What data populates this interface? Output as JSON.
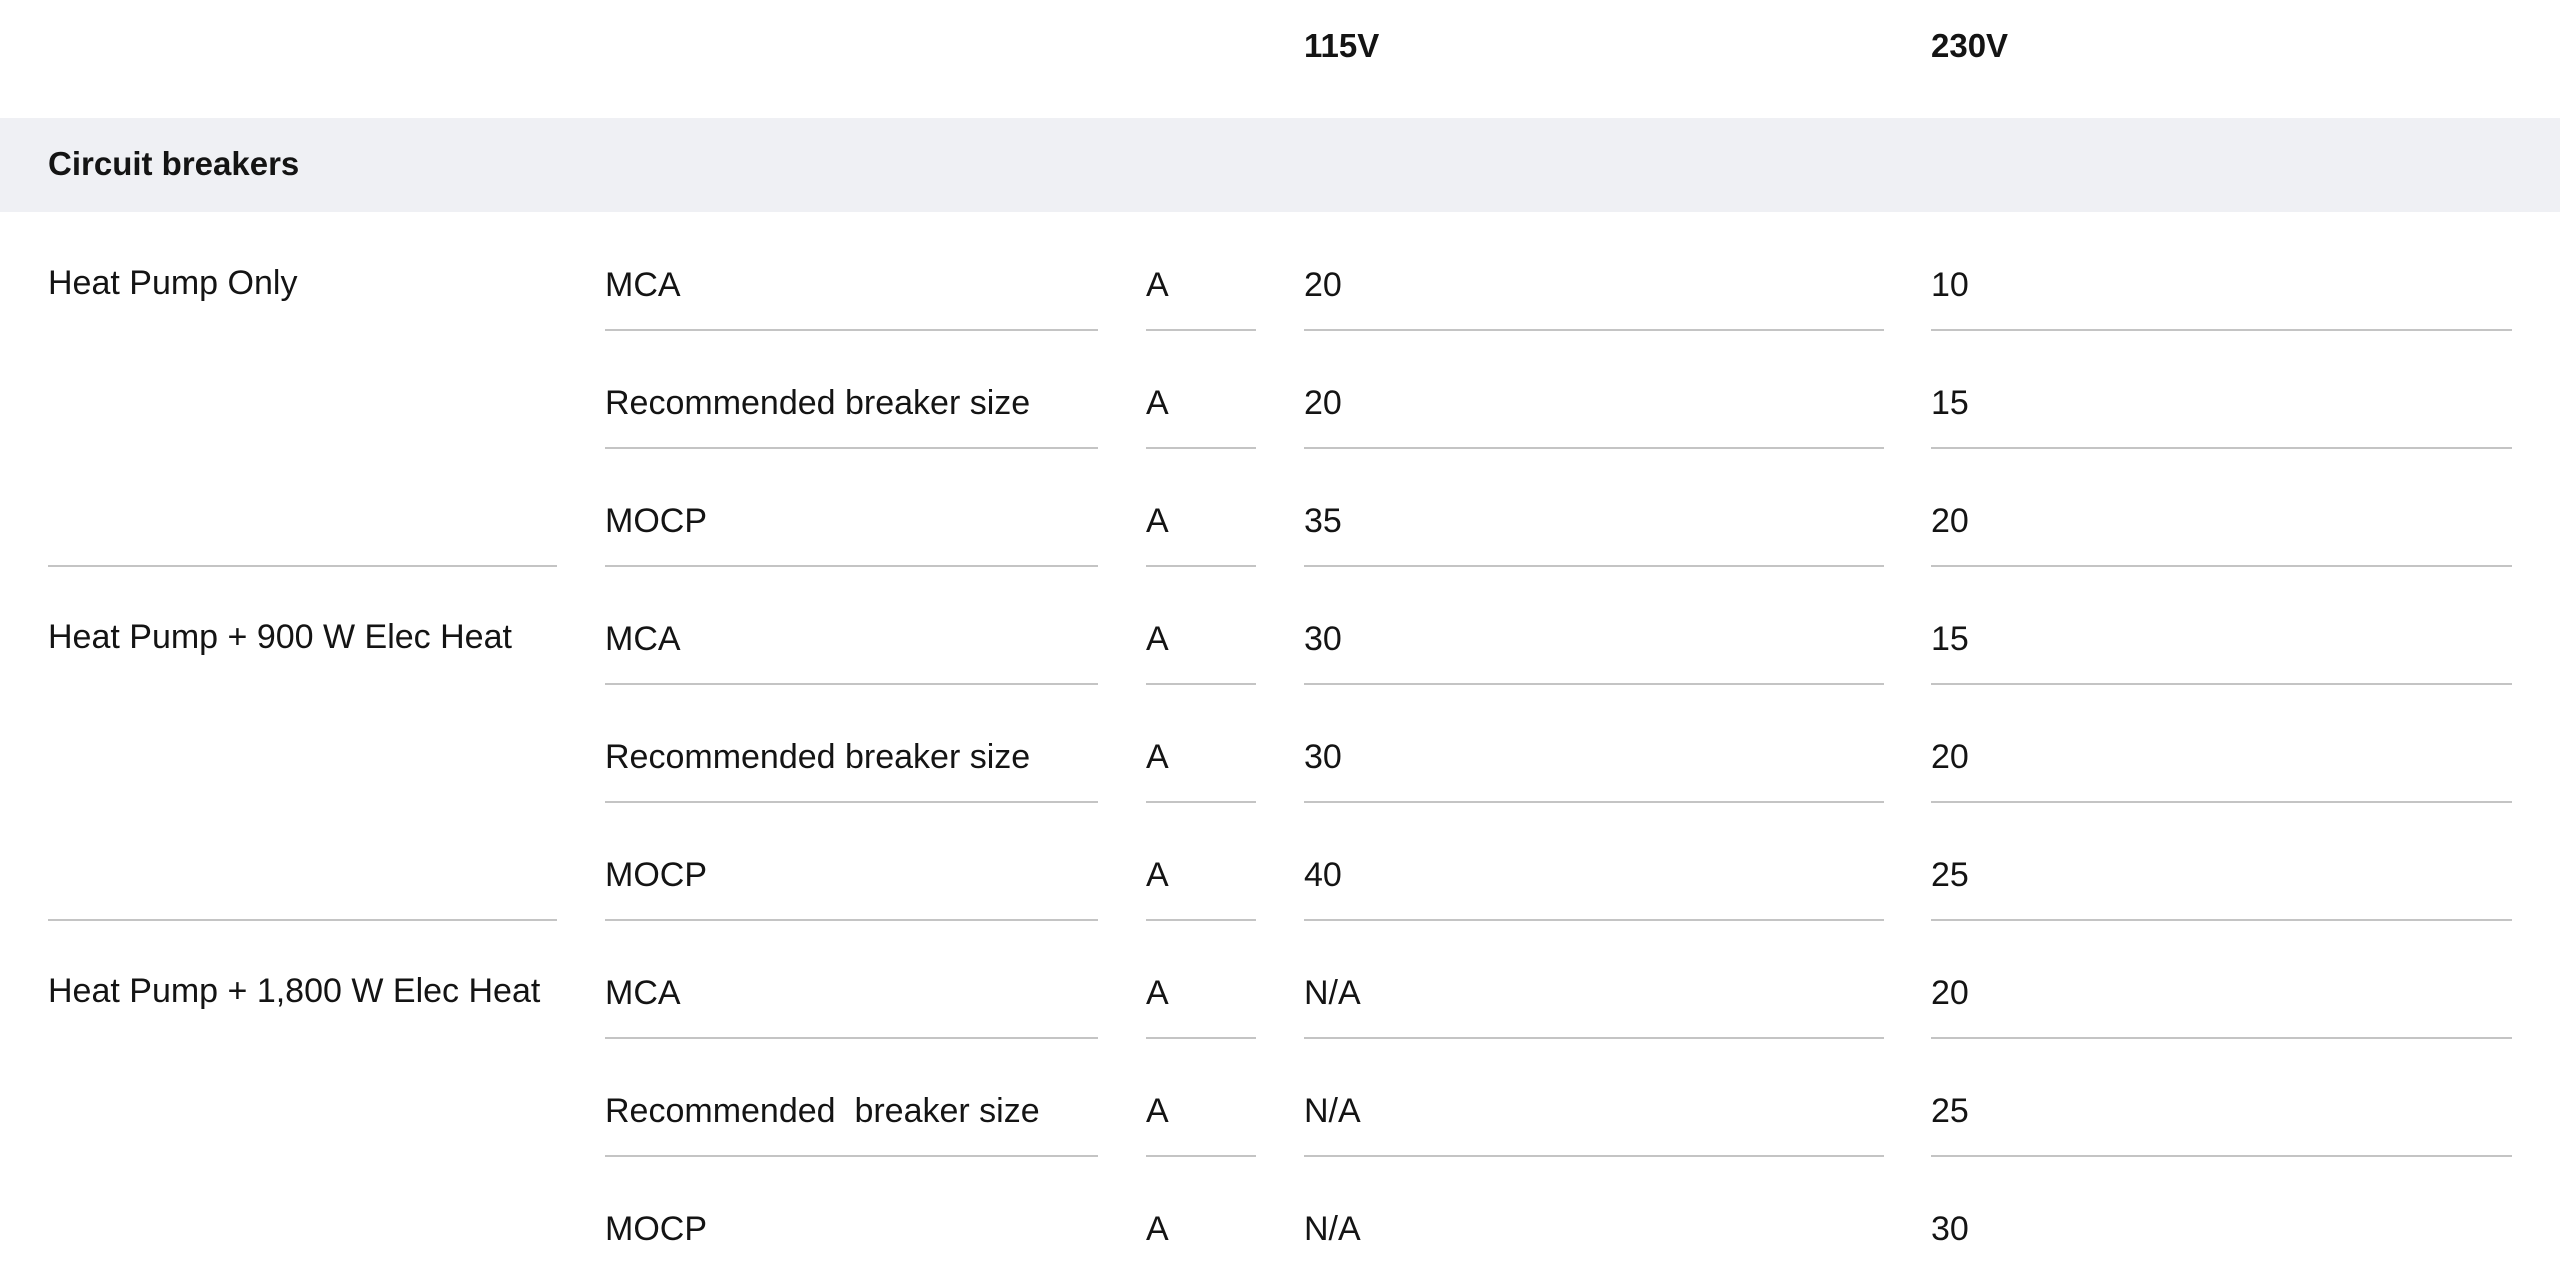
{
  "table": {
    "header": {
      "col_115v": "115V",
      "col_230v": "230V"
    },
    "section_title": "Circuit breakers",
    "groups": [
      {
        "label": "Heat Pump Only",
        "rows": [
          {
            "metric": "MCA",
            "unit": "A",
            "v115": "20",
            "v230": "10"
          },
          {
            "metric": "Recommended breaker size",
            "unit": "A",
            "v115": "20",
            "v230": "15"
          },
          {
            "metric": "MOCP",
            "unit": "A",
            "v115": "35",
            "v230": "20"
          }
        ]
      },
      {
        "label": "Heat Pump + 900 W Elec Heat",
        "rows": [
          {
            "metric": "MCA",
            "unit": "A",
            "v115": "30",
            "v230": "15"
          },
          {
            "metric": "Recommended breaker size",
            "unit": "A",
            "v115": "30",
            "v230": "20"
          },
          {
            "metric": "MOCP",
            "unit": "A",
            "v115": "40",
            "v230": "25"
          }
        ]
      },
      {
        "label": "Heat Pump + 1,800 W Elec Heat",
        "rows": [
          {
            "metric": "MCA",
            "unit": "A",
            "v115": "N/A",
            "v230": "20"
          },
          {
            "metric": "Recommended  breaker size",
            "unit": "A",
            "v115": "N/A",
            "v230": "25"
          },
          {
            "metric": "MOCP",
            "unit": "A",
            "v115": "N/A",
            "v230": "30"
          }
        ]
      }
    ]
  }
}
